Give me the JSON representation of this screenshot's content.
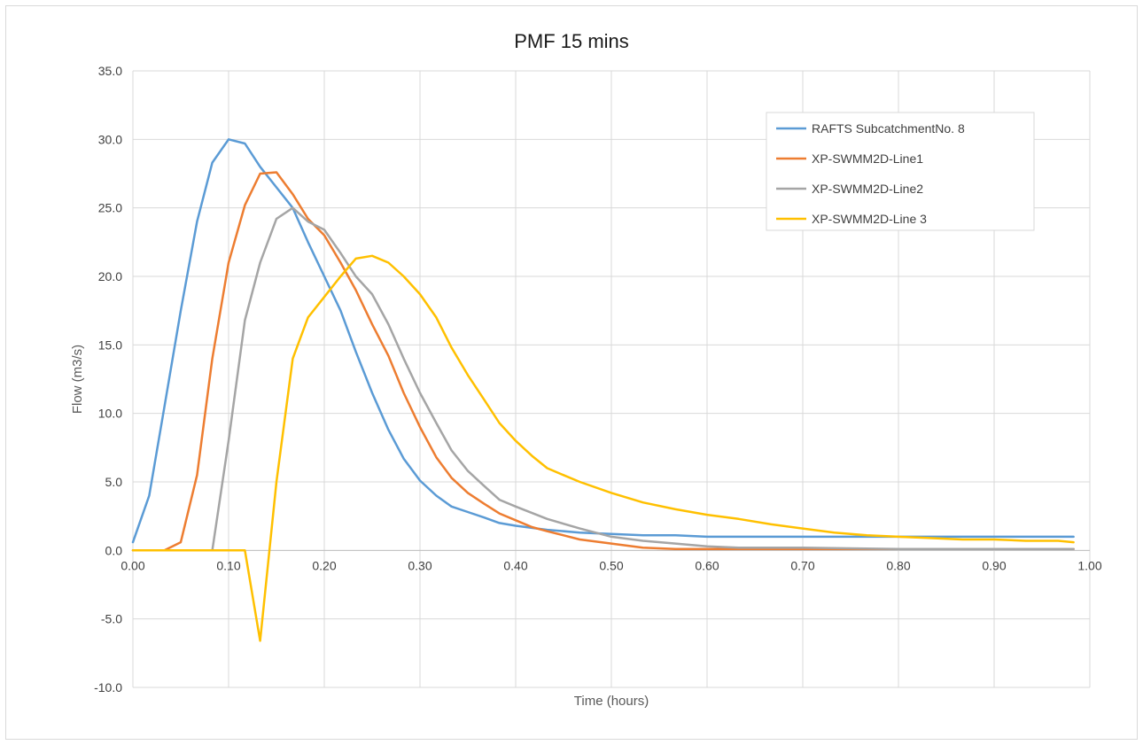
{
  "chart_data": {
    "type": "line",
    "title": "PMF 15 mins",
    "xlabel": "Time (hours)",
    "ylabel": "Flow (m3/s)",
    "xlim": [
      0.0,
      1.0
    ],
    "ylim": [
      -10.0,
      35.0
    ],
    "x_ticks": [
      "0.00",
      "0.10",
      "0.20",
      "0.30",
      "0.40",
      "0.50",
      "0.60",
      "0.70",
      "0.80",
      "0.90",
      "1.00"
    ],
    "y_ticks": [
      "35.0",
      "30.0",
      "25.0",
      "20.0",
      "15.0",
      "10.0",
      "5.0",
      "0.0",
      "-5.0",
      "-10.0"
    ],
    "grid": true,
    "legend_position": "top-right",
    "series": [
      {
        "name": "RAFTS SubcatchmentNo. 8",
        "color": "#5b9bd5",
        "points": [
          [
            0.0,
            0.6
          ],
          [
            0.017,
            4.0
          ],
          [
            0.033,
            10.5
          ],
          [
            0.05,
            17.5
          ],
          [
            0.067,
            24.0
          ],
          [
            0.083,
            28.3
          ],
          [
            0.1,
            30.0
          ],
          [
            0.117,
            29.7
          ],
          [
            0.133,
            28.0
          ],
          [
            0.15,
            26.5
          ],
          [
            0.167,
            25.0
          ],
          [
            0.183,
            22.5
          ],
          [
            0.2,
            20.0
          ],
          [
            0.217,
            17.5
          ],
          [
            0.233,
            14.5
          ],
          [
            0.25,
            11.5
          ],
          [
            0.267,
            8.8
          ],
          [
            0.283,
            6.7
          ],
          [
            0.3,
            5.1
          ],
          [
            0.317,
            4.0
          ],
          [
            0.333,
            3.2
          ],
          [
            0.35,
            2.8
          ],
          [
            0.367,
            2.4
          ],
          [
            0.383,
            2.0
          ],
          [
            0.4,
            1.8
          ],
          [
            0.433,
            1.5
          ],
          [
            0.467,
            1.3
          ],
          [
            0.5,
            1.2
          ],
          [
            0.533,
            1.1
          ],
          [
            0.567,
            1.1
          ],
          [
            0.6,
            1.0
          ],
          [
            0.7,
            1.0
          ],
          [
            0.8,
            1.0
          ],
          [
            0.9,
            1.0
          ],
          [
            0.983,
            1.0
          ]
        ]
      },
      {
        "name": "XP-SWMM2D-Line1",
        "color": "#ed7d31",
        "points": [
          [
            0.0,
            0.0
          ],
          [
            0.033,
            0.0
          ],
          [
            0.05,
            0.6
          ],
          [
            0.067,
            5.5
          ],
          [
            0.083,
            14.0
          ],
          [
            0.1,
            21.0
          ],
          [
            0.117,
            25.2
          ],
          [
            0.133,
            27.5
          ],
          [
            0.15,
            27.6
          ],
          [
            0.167,
            26.0
          ],
          [
            0.183,
            24.2
          ],
          [
            0.2,
            23.0
          ],
          [
            0.217,
            21.0
          ],
          [
            0.233,
            19.0
          ],
          [
            0.25,
            16.5
          ],
          [
            0.267,
            14.2
          ],
          [
            0.283,
            11.5
          ],
          [
            0.3,
            9.0
          ],
          [
            0.317,
            6.8
          ],
          [
            0.333,
            5.3
          ],
          [
            0.35,
            4.2
          ],
          [
            0.367,
            3.4
          ],
          [
            0.383,
            2.7
          ],
          [
            0.4,
            2.2
          ],
          [
            0.417,
            1.7
          ],
          [
            0.433,
            1.4
          ],
          [
            0.45,
            1.1
          ],
          [
            0.467,
            0.8
          ],
          [
            0.5,
            0.5
          ],
          [
            0.533,
            0.2
          ],
          [
            0.567,
            0.1
          ],
          [
            0.6,
            0.1
          ],
          [
            0.7,
            0.1
          ],
          [
            0.8,
            0.1
          ],
          [
            0.9,
            0.1
          ],
          [
            0.983,
            0.1
          ]
        ]
      },
      {
        "name": "XP-SWMM2D-Line2",
        "color": "#a5a5a5",
        "points": [
          [
            0.0,
            0.0
          ],
          [
            0.083,
            0.0
          ],
          [
            0.1,
            8.0
          ],
          [
            0.117,
            16.8
          ],
          [
            0.133,
            21.0
          ],
          [
            0.15,
            24.2
          ],
          [
            0.167,
            25.0
          ],
          [
            0.183,
            24.0
          ],
          [
            0.2,
            23.4
          ],
          [
            0.217,
            21.7
          ],
          [
            0.233,
            20.0
          ],
          [
            0.25,
            18.7
          ],
          [
            0.267,
            16.5
          ],
          [
            0.283,
            14.0
          ],
          [
            0.3,
            11.5
          ],
          [
            0.317,
            9.3
          ],
          [
            0.333,
            7.3
          ],
          [
            0.35,
            5.8
          ],
          [
            0.367,
            4.7
          ],
          [
            0.383,
            3.7
          ],
          [
            0.4,
            3.2
          ],
          [
            0.433,
            2.3
          ],
          [
            0.467,
            1.6
          ],
          [
            0.5,
            1.0
          ],
          [
            0.533,
            0.7
          ],
          [
            0.567,
            0.5
          ],
          [
            0.6,
            0.3
          ],
          [
            0.633,
            0.2
          ],
          [
            0.7,
            0.2
          ],
          [
            0.8,
            0.1
          ],
          [
            0.9,
            0.1
          ],
          [
            0.983,
            0.1
          ]
        ]
      },
      {
        "name": "XP-SWMM2D-Line 3",
        "color": "#ffc000",
        "points": [
          [
            0.0,
            0.0
          ],
          [
            0.117,
            0.0
          ],
          [
            0.133,
            -6.6
          ],
          [
            0.15,
            5.0
          ],
          [
            0.167,
            14.0
          ],
          [
            0.183,
            17.0
          ],
          [
            0.2,
            18.5
          ],
          [
            0.217,
            20.0
          ],
          [
            0.233,
            21.3
          ],
          [
            0.25,
            21.5
          ],
          [
            0.267,
            21.0
          ],
          [
            0.283,
            20.0
          ],
          [
            0.3,
            18.7
          ],
          [
            0.317,
            17.0
          ],
          [
            0.333,
            14.8
          ],
          [
            0.35,
            12.8
          ],
          [
            0.367,
            11.0
          ],
          [
            0.383,
            9.3
          ],
          [
            0.4,
            8.0
          ],
          [
            0.417,
            6.9
          ],
          [
            0.433,
            6.0
          ],
          [
            0.45,
            5.5
          ],
          [
            0.467,
            5.0
          ],
          [
            0.5,
            4.2
          ],
          [
            0.533,
            3.5
          ],
          [
            0.567,
            3.0
          ],
          [
            0.6,
            2.6
          ],
          [
            0.633,
            2.3
          ],
          [
            0.667,
            1.9
          ],
          [
            0.7,
            1.6
          ],
          [
            0.733,
            1.3
          ],
          [
            0.767,
            1.1
          ],
          [
            0.8,
            1.0
          ],
          [
            0.833,
            0.9
          ],
          [
            0.867,
            0.8
          ],
          [
            0.9,
            0.8
          ],
          [
            0.933,
            0.7
          ],
          [
            0.967,
            0.7
          ],
          [
            0.983,
            0.6
          ]
        ]
      }
    ]
  }
}
